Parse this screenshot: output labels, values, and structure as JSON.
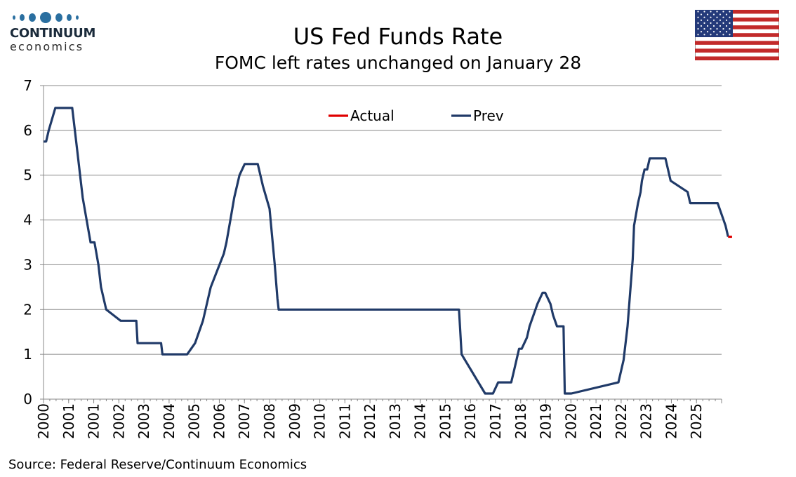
{
  "logo": {
    "line1": "CONTINUUM",
    "line2": "economics"
  },
  "source": "Source: Federal Reserve/Continuum Economics",
  "flag_icon": "us-flag-icon",
  "colors": {
    "actual": "#e00000",
    "prev": "#203a68",
    "grid": "#888888",
    "logo_blue": "#2a6fa0"
  },
  "chart_data": {
    "type": "line",
    "title": "US Fed Funds Rate",
    "subtitle": "FOMC left rates unchanged on January 28",
    "xlabel": "",
    "ylabel": "",
    "ylim": [
      0,
      7
    ],
    "yticks": [
      0,
      1,
      2,
      3,
      4,
      5,
      6,
      7
    ],
    "xlim": [
      2000.0,
      2025.95
    ],
    "xticks": [
      "2000",
      "2001",
      "2001",
      "2002",
      "2003",
      "2004",
      "2005",
      "2006",
      "2007",
      "2008",
      "2009",
      "2010",
      "2011",
      "2012",
      "2013",
      "2014",
      "2015",
      "2016",
      "2017",
      "2018",
      "2019",
      "2020",
      "2021",
      "2022",
      "2023",
      "2024",
      "2025"
    ],
    "grid": true,
    "legend": "top-center",
    "series": [
      {
        "name": "Prev",
        "color": "#203a68",
        "x": [
          2000.0,
          2000.1,
          2000.2,
          2000.45,
          2000.7,
          2000.9,
          2001.1,
          2001.3,
          2001.5,
          2001.65,
          2001.8,
          2001.95,
          2002.1,
          2002.2,
          2002.4,
          2002.95,
          2003.1,
          2003.2,
          2003.55,
          2003.6,
          2004.5,
          2004.55,
          2004.8,
          2005.0,
          2005.3,
          2005.5,
          2005.8,
          2006.1,
          2006.3,
          2006.4,
          2006.9,
          2007.0,
          2007.15,
          2007.3,
          2007.5,
          2007.7,
          2007.8,
          2008.0,
          2008.05,
          2008.2,
          2008.4,
          2008.65,
          2008.85,
          2008.95,
          2009.0,
          2015.9,
          2016.0,
          2016.9,
          2017.0,
          2017.2,
          2017.4,
          2017.6,
          2017.9,
          2018.0,
          2018.1,
          2018.2,
          2018.3,
          2018.5,
          2018.6,
          2018.75,
          2018.9,
          2019.1,
          2019.2,
          2019.4,
          2019.5,
          2019.65,
          2019.9,
          2019.95,
          2020.1,
          2020.2,
          2022.0,
          2022.2,
          2022.35,
          2022.45,
          2022.55,
          2022.6,
          2022.75,
          2022.85,
          2022.9,
          2023.0,
          2023.1,
          2023.2,
          2023.3,
          2023.45,
          2023.55,
          2023.8,
          2024.0,
          2024.65,
          2024.75,
          2024.9,
          2025.0,
          2025.8,
          2025.95,
          2026.1,
          2026.2
        ],
        "values": [
          5.75,
          5.75,
          6.0,
          6.5,
          6.5,
          6.5,
          6.5,
          5.5,
          4.5,
          4.0,
          3.5,
          3.5,
          3.0,
          2.5,
          2.0,
          1.75,
          1.75,
          1.75,
          1.75,
          1.25,
          1.25,
          1.0,
          1.0,
          1.0,
          1.0,
          1.0,
          1.25,
          1.75,
          2.25,
          2.5,
          3.25,
          3.5,
          4.0,
          4.5,
          5.0,
          5.25,
          5.25,
          5.25,
          5.25,
          5.25,
          4.75,
          4.25,
          3.0,
          2.25,
          2.0,
          2.0,
          1.0,
          0.125,
          0.125,
          0.125,
          0.375,
          0.375,
          0.375,
          0.625,
          0.875,
          1.125,
          1.125,
          1.375,
          1.625,
          1.875,
          2.125,
          2.375,
          2.375,
          2.125,
          1.875,
          1.625,
          1.625,
          0.125,
          0.125,
          0.125,
          0.375,
          0.875,
          1.625,
          2.375,
          3.125,
          3.875,
          4.375,
          4.625,
          4.875,
          5.125,
          5.125,
          5.375,
          5.375,
          5.375,
          5.375,
          5.375,
          4.875,
          4.625,
          4.375,
          4.375,
          4.375,
          4.375,
          4.125,
          3.875,
          3.625
        ]
      },
      {
        "name": "Actual",
        "color": "#e00000",
        "x": [
          2026.2,
          2026.35
        ],
        "values": [
          3.625,
          3.625
        ]
      }
    ]
  }
}
